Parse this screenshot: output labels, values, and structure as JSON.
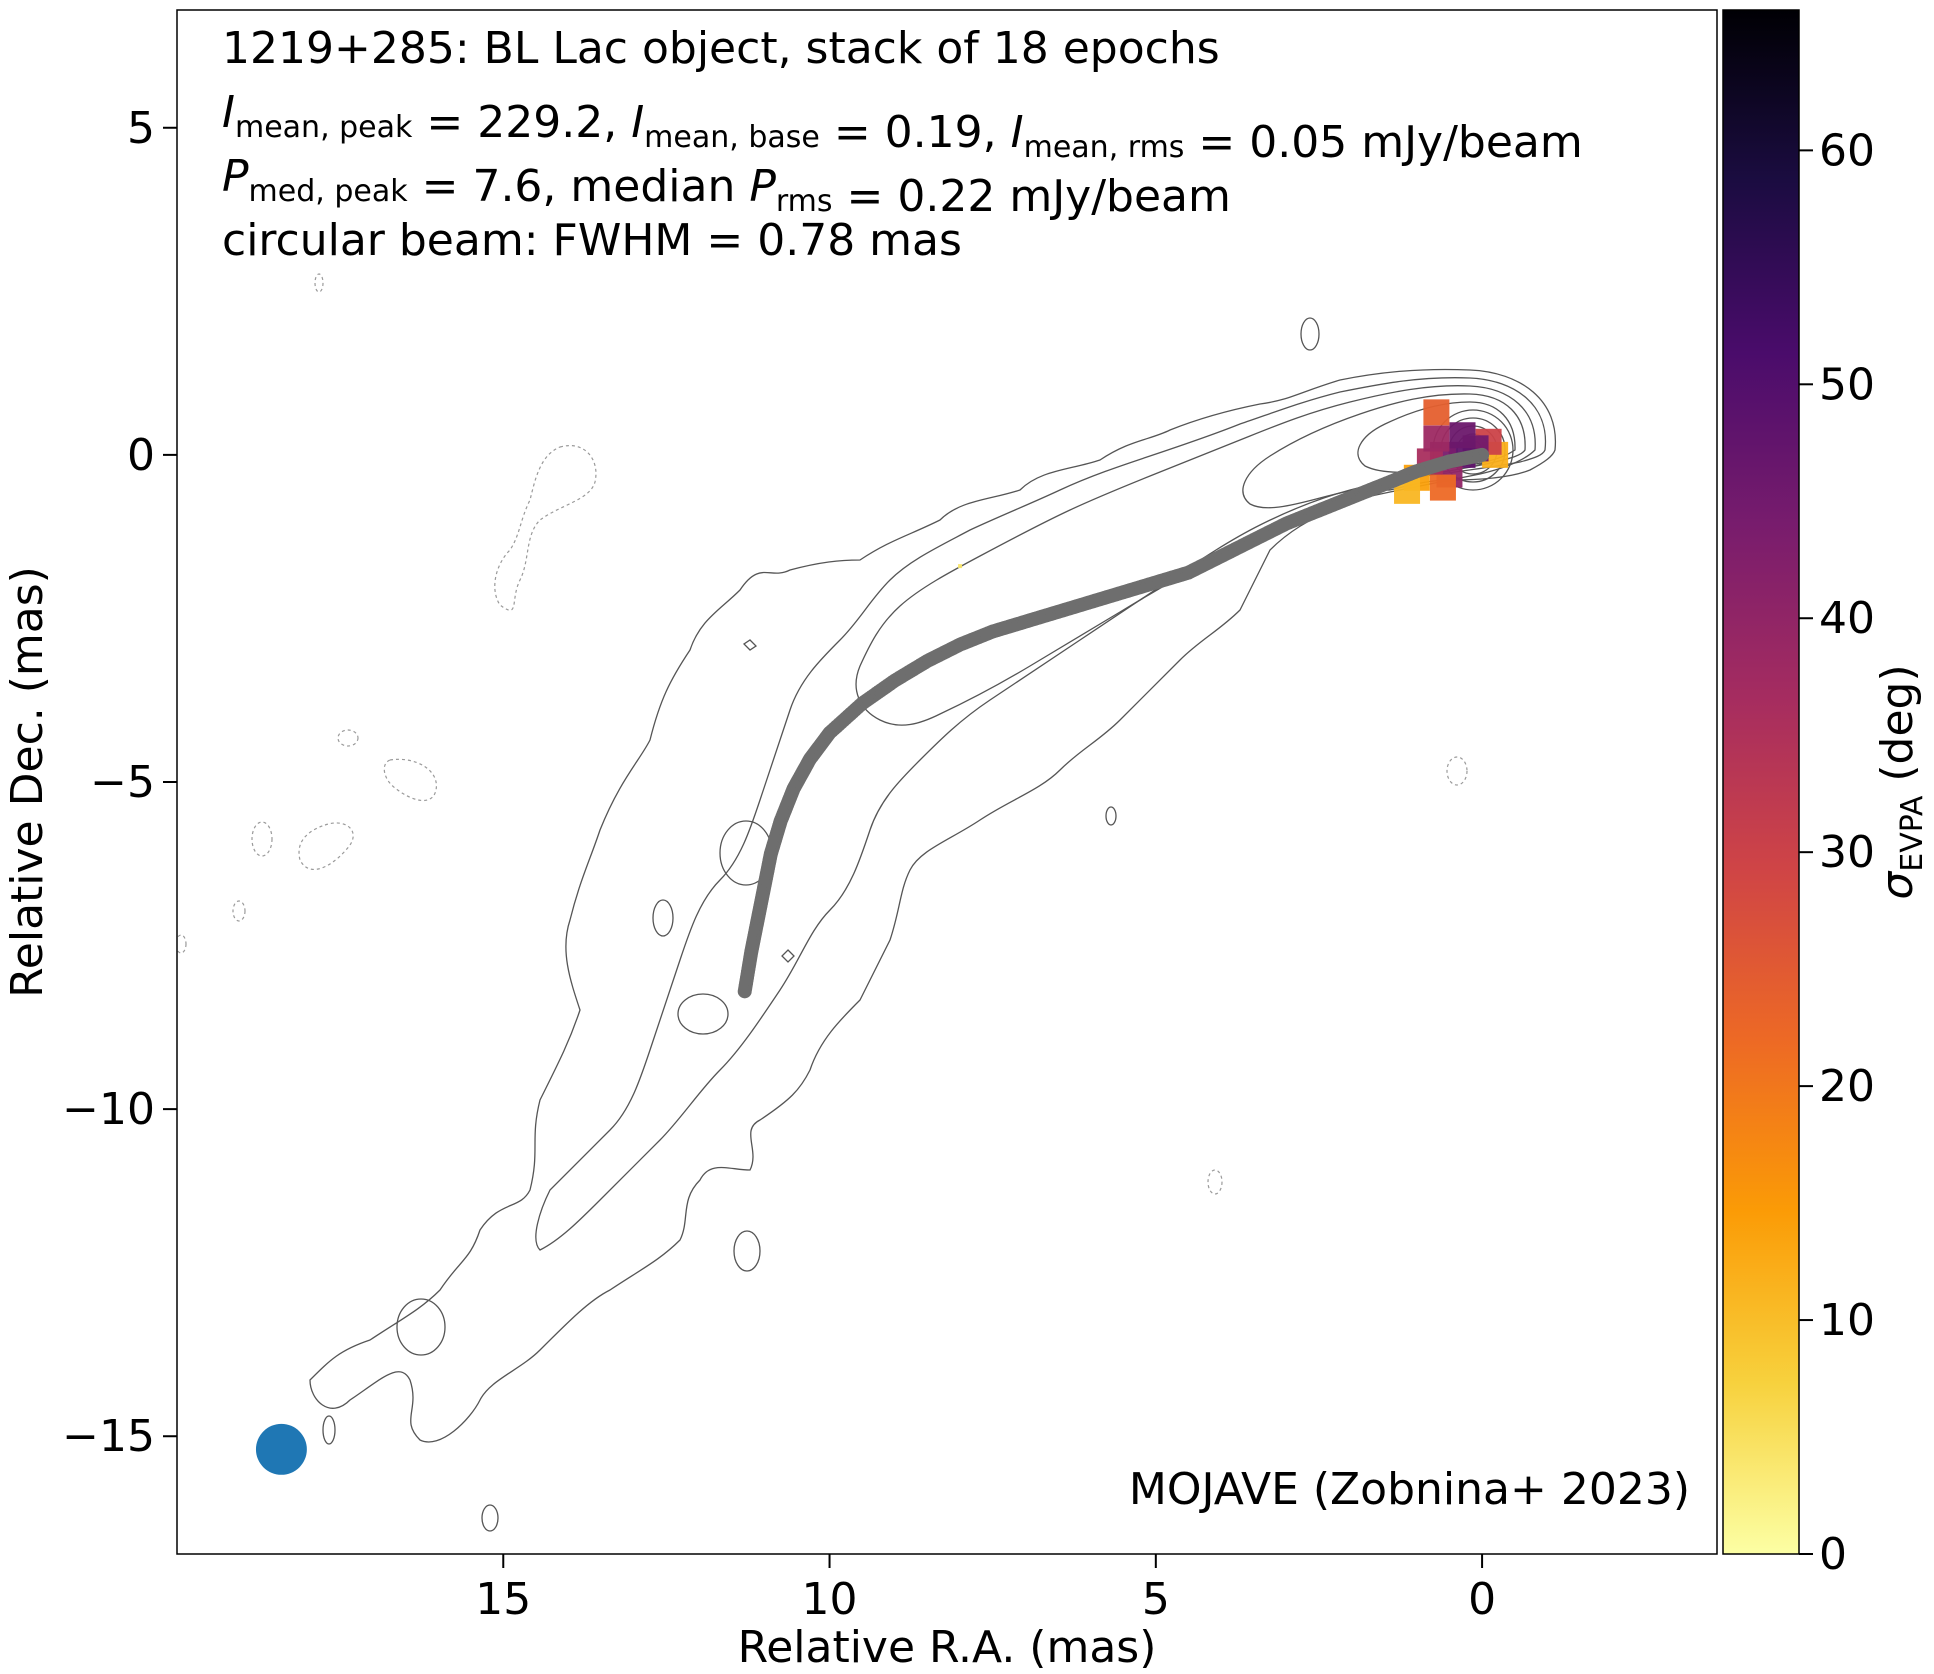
{
  "chart_data": {
    "type": "scatter",
    "title_lines": [
      {
        "parts": [
          {
            "t": "1219+285: BL Lac object, stack of 18 epochs"
          }
        ]
      },
      {
        "parts": [
          {
            "t": "I",
            "style": "italic"
          },
          {
            "t": "mean, peak",
            "style": "sub"
          },
          {
            "t": " = 229.2, "
          },
          {
            "t": "I",
            "style": "italic"
          },
          {
            "t": "mean, base",
            "style": "sub"
          },
          {
            "t": " = 0.19, "
          },
          {
            "t": "I",
            "style": "italic"
          },
          {
            "t": "mean, rms",
            "style": "sub"
          },
          {
            "t": " = 0.05 mJy/beam"
          }
        ]
      },
      {
        "parts": [
          {
            "t": "P",
            "style": "italic"
          },
          {
            "t": "med, peak",
            "style": "sub"
          },
          {
            "t": " = 7.6, median "
          },
          {
            "t": "P",
            "style": "italic"
          },
          {
            "t": "rms",
            "style": "sub"
          },
          {
            "t": " = 0.22 mJy/beam"
          }
        ]
      },
      {
        "parts": [
          {
            "t": "circular beam: FWHM = 0.78 mas"
          }
        ]
      }
    ],
    "xlabel": "Relative R.A. (mas)",
    "ylabel": "Relative Dec. (mas)",
    "xlim": [
      20.0,
      -3.6
    ],
    "ylim": [
      -16.8,
      6.8
    ],
    "xticks": [
      15,
      10,
      5,
      0
    ],
    "xtick_labels": [
      "15",
      "10",
      "5",
      "0"
    ],
    "yticks": [
      5,
      0,
      -5,
      -10,
      -15
    ],
    "ytick_labels": [
      "5",
      "0",
      "−5",
      "−10",
      "−15"
    ],
    "grid": false,
    "credit": "MOJAVE (Zobnina+ 2023)",
    "colorbar": {
      "label_symbol": "σ",
      "label_sub": "EVPA",
      "label_unit": " (deg)",
      "range": [
        0,
        66
      ],
      "ticks": [
        0,
        10,
        20,
        30,
        40,
        50,
        60
      ],
      "tick_labels": [
        "0",
        "10",
        "20",
        "30",
        "40",
        "50",
        "60"
      ],
      "colormap": "inferno_r",
      "stops": [
        "#fcffa4",
        "#f7d13d",
        "#fb9b06",
        "#ed6925",
        "#cf4446",
        "#a52c60",
        "#781c6d",
        "#4a0c6b",
        "#1b0c41",
        "#000004"
      ]
    },
    "beam": {
      "x": 18.4,
      "y": -15.2,
      "fwhm": 0.78,
      "color": "#1f77b4"
    },
    "ridgeline": {
      "color": "#6e6e6e",
      "points": [
        [
          0.0,
          0.0
        ],
        [
          0.5,
          -0.1
        ],
        [
          1.0,
          -0.25
        ],
        [
          1.5,
          -0.45
        ],
        [
          2.0,
          -0.65
        ],
        [
          2.5,
          -0.85
        ],
        [
          3.0,
          -1.05
        ],
        [
          3.5,
          -1.3
        ],
        [
          4.0,
          -1.55
        ],
        [
          4.5,
          -1.8
        ],
        [
          5.0,
          -1.95
        ],
        [
          5.5,
          -2.1
        ],
        [
          6.0,
          -2.25
        ],
        [
          6.5,
          -2.4
        ],
        [
          7.0,
          -2.55
        ],
        [
          7.5,
          -2.7
        ],
        [
          8.0,
          -2.9
        ],
        [
          8.5,
          -3.15
        ],
        [
          9.0,
          -3.45
        ],
        [
          9.5,
          -3.8
        ],
        [
          10.0,
          -4.25
        ],
        [
          10.3,
          -4.65
        ],
        [
          10.55,
          -5.1
        ],
        [
          10.75,
          -5.6
        ],
        [
          10.9,
          -6.1
        ],
        [
          11.0,
          -6.6
        ],
        [
          11.1,
          -7.1
        ],
        [
          11.2,
          -7.6
        ],
        [
          11.3,
          -8.2
        ]
      ]
    },
    "polarization": {
      "pixels": [
        {
          "x": -0.2,
          "y": 0.0,
          "sigma": 12
        },
        {
          "x": -0.1,
          "y": 0.2,
          "sigma": 30
        },
        {
          "x": 0.1,
          "y": 0.1,
          "sigma": 45
        },
        {
          "x": 0.3,
          "y": 0.0,
          "sigma": 48
        },
        {
          "x": 0.6,
          "y": 0.0,
          "sigma": 44
        },
        {
          "x": 0.3,
          "y": 0.3,
          "sigma": 46
        },
        {
          "x": 0.5,
          "y": -0.3,
          "sigma": 40
        },
        {
          "x": 0.8,
          "y": -0.1,
          "sigma": 36
        },
        {
          "x": 0.7,
          "y": 0.25,
          "sigma": 38
        },
        {
          "x": 1.0,
          "y": -0.35,
          "sigma": 14
        },
        {
          "x": 1.15,
          "y": -0.55,
          "sigma": 11
        },
        {
          "x": 0.6,
          "y": -0.5,
          "sigma": 22
        },
        {
          "x": 0.7,
          "y": 0.65,
          "sigma": 24
        },
        {
          "x": 8.0,
          "y": -1.7,
          "sigma": 4
        }
      ]
    }
  }
}
